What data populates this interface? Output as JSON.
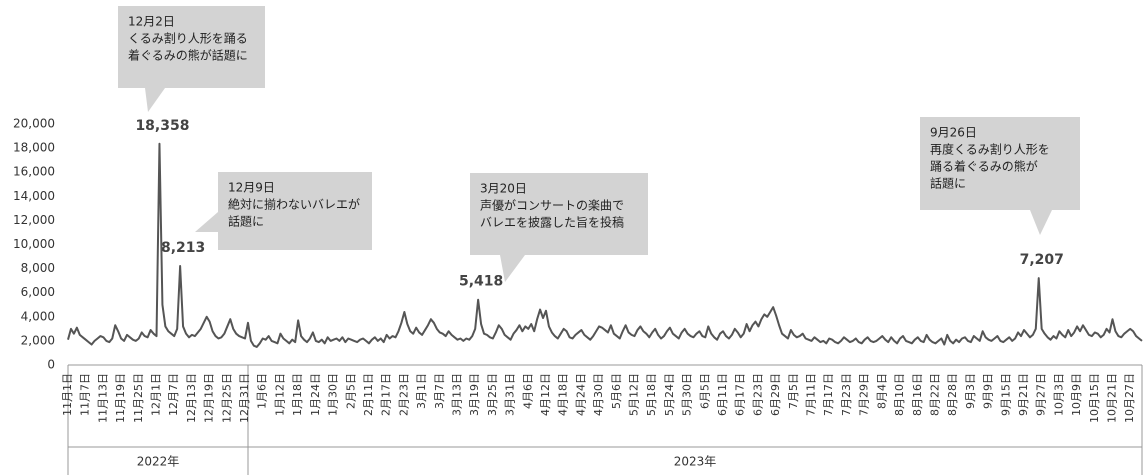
{
  "chart_data": {
    "type": "line",
    "categories": [
      "11月1日",
      null,
      null,
      null,
      null,
      null,
      "11月7日",
      null,
      null,
      null,
      null,
      null,
      "11月13日",
      null,
      null,
      null,
      null,
      null,
      "11月19日",
      null,
      null,
      null,
      null,
      null,
      "11月25日",
      null,
      null,
      null,
      null,
      null,
      "12月1日",
      null,
      null,
      null,
      null,
      null,
      "12月7日",
      null,
      null,
      null,
      null,
      null,
      "12月13日",
      null,
      null,
      null,
      null,
      null,
      "12月19日",
      null,
      null,
      null,
      null,
      null,
      "12月25日",
      null,
      null,
      null,
      null,
      null,
      "12月31日",
      null,
      null,
      null,
      null,
      null,
      "1月6日",
      null,
      null,
      null,
      null,
      null,
      "1月12日",
      null,
      null,
      null,
      null,
      null,
      "1月18日",
      null,
      null,
      null,
      null,
      null,
      "1月24日",
      null,
      null,
      null,
      null,
      null,
      "1月30日",
      null,
      null,
      null,
      null,
      null,
      "2月5日",
      null,
      null,
      null,
      null,
      null,
      "2月11日",
      null,
      null,
      null,
      null,
      null,
      "2月17日",
      null,
      null,
      null,
      null,
      null,
      "2月23日",
      null,
      null,
      null,
      null,
      null,
      "3月1日",
      null,
      null,
      null,
      null,
      null,
      "3月7日",
      null,
      null,
      null,
      null,
      null,
      "3月13日",
      null,
      null,
      null,
      null,
      null,
      "3月19日",
      null,
      null,
      null,
      null,
      null,
      "3月25日",
      null,
      null,
      null,
      null,
      null,
      "3月31日",
      null,
      null,
      null,
      null,
      null,
      "4月6日",
      null,
      null,
      null,
      null,
      null,
      "4月12日",
      null,
      null,
      null,
      null,
      null,
      "4月18日",
      null,
      null,
      null,
      null,
      null,
      "4月24日",
      null,
      null,
      null,
      null,
      null,
      "4月30日",
      null,
      null,
      null,
      null,
      null,
      "5月6日",
      null,
      null,
      null,
      null,
      null,
      "5月12日",
      null,
      null,
      null,
      null,
      null,
      "5月18日",
      null,
      null,
      null,
      null,
      null,
      "5月24日",
      null,
      null,
      null,
      null,
      null,
      "5月30日",
      null,
      null,
      null,
      null,
      null,
      "6月5日",
      null,
      null,
      null,
      null,
      null,
      "6月11日",
      null,
      null,
      null,
      null,
      null,
      "6月17日",
      null,
      null,
      null,
      null,
      null,
      "6月23日",
      null,
      null,
      null,
      null,
      null,
      "6月29日",
      null,
      null,
      null,
      null,
      null,
      "7月5日",
      null,
      null,
      null,
      null,
      null,
      "7月11日",
      null,
      null,
      null,
      null,
      null,
      "7月17日",
      null,
      null,
      null,
      null,
      null,
      "7月23日",
      null,
      null,
      null,
      null,
      null,
      "7月29日",
      null,
      null,
      null,
      null,
      null,
      "8月4日",
      null,
      null,
      null,
      null,
      null,
      "8月10日",
      null,
      null,
      null,
      null,
      null,
      "8月16日",
      null,
      null,
      null,
      null,
      null,
      "8月22日",
      null,
      null,
      null,
      null,
      null,
      "8月28日",
      null,
      null,
      null,
      null,
      null,
      "9月3日",
      null,
      null,
      null,
      null,
      null,
      "9月9日",
      null,
      null,
      null,
      null,
      null,
      "9月15日",
      null,
      null,
      null,
      null,
      null,
      "9月21日",
      null,
      null,
      null,
      null,
      null,
      "9月27日",
      null,
      null,
      null,
      null,
      null,
      "10月3日",
      null,
      null,
      null,
      null,
      null,
      "10月9日",
      null,
      null,
      null,
      null,
      null,
      "10月15日",
      null,
      null,
      null,
      null,
      null,
      "10月21日",
      null,
      null,
      null,
      null,
      null,
      "10月27日",
      null,
      null,
      null,
      null
    ],
    "values": [
      2100,
      3000,
      2600,
      3100,
      2500,
      2300,
      2100,
      1900,
      1700,
      2000,
      2200,
      2400,
      2300,
      2000,
      1900,
      2200,
      3300,
      2800,
      2200,
      2000,
      2500,
      2300,
      2100,
      2000,
      2200,
      2700,
      2400,
      2300,
      2900,
      2600,
      2400,
      18358,
      5000,
      3200,
      2800,
      2600,
      2400,
      3000,
      8213,
      3200,
      2600,
      2300,
      2500,
      2400,
      2700,
      3000,
      3500,
      4000,
      3600,
      2800,
      2400,
      2200,
      2300,
      2600,
      3200,
      3800,
      3000,
      2600,
      2400,
      2300,
      2200,
      3500,
      2000,
      1600,
      1500,
      1800,
      2200,
      2100,
      2400,
      2000,
      1900,
      1800,
      2600,
      2200,
      2000,
      1800,
      2100,
      1900,
      3700,
      2400,
      2100,
      1900,
      2200,
      2700,
      2000,
      1900,
      2100,
      1800,
      2300,
      2000,
      2100,
      2200,
      2000,
      2300,
      1900,
      2200,
      2100,
      2000,
      1900,
      2100,
      2200,
      2000,
      1800,
      2100,
      2300,
      2000,
      2200,
      1900,
      2500,
      2200,
      2400,
      2300,
      2800,
      3500,
      4400,
      3400,
      2800,
      2600,
      3100,
      2700,
      2500,
      2900,
      3300,
      3800,
      3500,
      3000,
      2700,
      2600,
      2400,
      2800,
      2500,
      2300,
      2100,
      2200,
      2000,
      2200,
      2100,
      2400,
      3000,
      5418,
      3400,
      2600,
      2500,
      2300,
      2200,
      2700,
      3300,
      3000,
      2500,
      2300,
      2100,
      2600,
      2900,
      3300,
      2800,
      3200,
      3000,
      3400,
      2800,
      3800,
      4600,
      3900,
      4500,
      3200,
      2700,
      2400,
      2200,
      2600,
      3000,
      2800,
      2300,
      2200,
      2500,
      2700,
      2900,
      2500,
      2300,
      2100,
      2400,
      2800,
      3200,
      3100,
      2900,
      2700,
      3300,
      2600,
      2400,
      2200,
      2800,
      3300,
      2700,
      2500,
      2400,
      2900,
      3200,
      2800,
      2600,
      2300,
      2700,
      3000,
      2500,
      2200,
      2400,
      2800,
      3100,
      2600,
      2400,
      2200,
      2700,
      3000,
      2600,
      2400,
      2300,
      2600,
      2800,
      2400,
      2300,
      3200,
      2600,
      2300,
      2100,
      2600,
      2800,
      2400,
      2200,
      2500,
      3000,
      2700,
      2300,
      2600,
      3400,
      2800,
      3300,
      3600,
      3200,
      3800,
      4200,
      4000,
      4400,
      4800,
      4100,
      3300,
      2600,
      2400,
      2200,
      2900,
      2500,
      2300,
      2400,
      2600,
      2200,
      2100,
      2000,
      2300,
      2100,
      1900,
      2000,
      1800,
      2200,
      2100,
      1900,
      1800,
      2000,
      2300,
      2100,
      1900,
      2000,
      2200,
      1900,
      1800,
      2100,
      2300,
      2000,
      1900,
      2000,
      2200,
      2400,
      2100,
      1900,
      2300,
      2000,
      1800,
      2200,
      2400,
      2000,
      1900,
      1800,
      2100,
      2300,
      2000,
      1900,
      2500,
      2100,
      1900,
      1800,
      2000,
      2200,
      1700,
      2500,
      2000,
      1800,
      2100,
      1900,
      2200,
      2300,
      2000,
      1900,
      2400,
      2200,
      2000,
      2800,
      2300,
      2100,
      2000,
      2200,
      2400,
      2000,
      1900,
      2100,
      2300,
      2000,
      2200,
      2700,
      2400,
      2900,
      2600,
      2300,
      2500,
      3000,
      7207,
      3000,
      2600,
      2300,
      2100,
      2400,
      2200,
      2800,
      2500,
      2300,
      2900,
      2400,
      2700,
      3200,
      2800,
      3300,
      2900,
      2500,
      2400,
      2700,
      2600,
      2300,
      2500,
      3000,
      2700,
      3800,
      2800,
      2400,
      2300,
      2600,
      2800,
      3000,
      2800,
      2400,
      2200,
      2000
    ],
    "value_labels": [
      null,
      null,
      null,
      null,
      null,
      null,
      null,
      null,
      null,
      null,
      null,
      null,
      null,
      null,
      null,
      null,
      null,
      null,
      null,
      null,
      null,
      null,
      null,
      null,
      null,
      null,
      null,
      null,
      null,
      null,
      null,
      "18,358",
      null,
      null,
      null,
      null,
      null,
      null,
      "8,213",
      null,
      null,
      null,
      null,
      null,
      null,
      null,
      null,
      null,
      null,
      null,
      null,
      null,
      null,
      null,
      null,
      null,
      null,
      null,
      null,
      null,
      null,
      null,
      null,
      null,
      null,
      null,
      null,
      null,
      null,
      null,
      null,
      null,
      null,
      null,
      null,
      null,
      null,
      null,
      null,
      null,
      null,
      null,
      null,
      null,
      null,
      null,
      null,
      null,
      null,
      null,
      null,
      null,
      null,
      null,
      null,
      null,
      null,
      null,
      null,
      null,
      null,
      null,
      null,
      null,
      null,
      null,
      null,
      null,
      null,
      null,
      null,
      null,
      null,
      null,
      null,
      null,
      null,
      null,
      null,
      null,
      null,
      null,
      null,
      null,
      null,
      null,
      null,
      null,
      null,
      null,
      null,
      null,
      null,
      null,
      null,
      null,
      null,
      null,
      null,
      "5,418",
      null,
      null,
      null,
      null,
      null,
      null,
      null,
      null,
      null,
      null,
      null,
      null,
      null,
      null,
      null,
      null,
      null,
      null,
      null,
      null,
      null,
      null,
      null,
      null,
      null,
      null,
      null,
      null,
      null,
      null,
      null,
      null,
      null,
      null,
      null,
      null,
      null,
      null,
      null,
      null,
      null,
      null,
      null,
      null,
      null,
      null,
      null,
      null,
      null,
      null,
      null,
      null,
      null,
      null,
      null,
      null,
      null,
      null,
      null,
      null,
      null,
      null,
      null,
      null,
      null,
      null,
      null,
      null,
      null,
      null,
      null,
      null,
      null,
      null,
      null,
      null,
      null,
      null,
      null,
      null,
      null,
      null,
      null,
      null,
      null,
      null,
      null,
      null,
      null,
      null,
      null,
      null,
      null,
      null,
      null,
      null,
      null,
      null,
      null,
      null,
      null,
      null,
      null,
      null,
      null,
      null,
      null,
      null,
      null,
      null,
      null,
      null,
      null,
      null,
      null,
      null,
      null,
      null,
      null,
      null,
      null,
      null,
      null,
      null,
      null,
      null,
      null,
      null,
      null,
      null,
      null,
      null,
      null,
      null,
      null,
      null,
      null,
      null,
      null,
      null,
      null,
      null,
      null,
      null,
      null,
      null,
      null,
      null,
      null,
      null,
      null,
      null,
      null,
      null,
      null,
      null,
      null,
      null,
      null,
      null,
      null,
      null,
      null,
      null,
      null,
      null,
      null,
      null,
      null,
      null,
      null,
      null,
      null,
      null,
      null,
      null,
      null,
      null,
      null,
      null,
      null,
      null,
      null,
      null,
      null,
      null,
      null,
      null,
      null,
      "7,207",
      null,
      null,
      null,
      null,
      null,
      null,
      null,
      null,
      null,
      null,
      null,
      null,
      null,
      null,
      null,
      null,
      null,
      null,
      null,
      null,
      null,
      null,
      null,
      null,
      null,
      null,
      null,
      null,
      null,
      null,
      null,
      null,
      null,
      null,
      null
    ],
    "color": "#555555",
    "ylim": [
      0,
      20000
    ],
    "yticks": [
      0,
      {
        "value": 2000,
        "label": "2,000"
      },
      {
        "value": 4000,
        "label": "4,000"
      },
      {
        "value": 6000,
        "label": "6,000"
      },
      {
        "value": 8000,
        "label": "8,000"
      },
      {
        "value": 10000,
        "label": "10,000"
      },
      {
        "value": 12000,
        "label": "12,000"
      },
      {
        "value": 14000,
        "label": "14,000"
      },
      {
        "value": 16000,
        "label": "16,000"
      },
      {
        "value": 18000,
        "label": "18,000"
      },
      {
        "value": 20000,
        "label": "20,000"
      }
    ],
    "grid": false,
    "year_groups": [
      "2022年",
      "2023年"
    ],
    "annotations": [
      {
        "lines": [
          "12月2日",
          "くるみ割り人形を踊る",
          "着ぐるみの熊が話題に"
        ]
      },
      {
        "lines": [
          "12月9日",
          "絶対に揃わないバレエが",
          "話題に"
        ]
      },
      {
        "lines": [
          "3月20日",
          "声優がコンサートの楽曲で",
          "バレエを披露した旨を投稿"
        ]
      },
      {
        "lines": [
          "9月26日",
          "再度くるみ割り人形を",
          "踊る着ぐるみの熊が",
          "話題に"
        ]
      }
    ]
  }
}
